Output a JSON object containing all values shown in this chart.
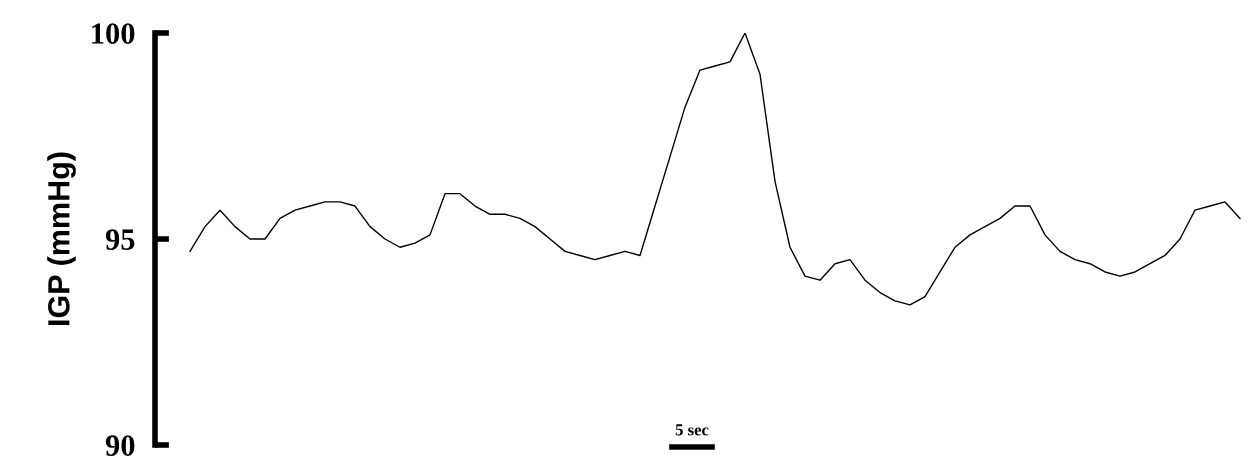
{
  "chart_data": {
    "type": "line",
    "ylabel": "IGP (mmHg)",
    "annotations": [
      "5 sec"
    ],
    "categories": [
      null,
      null,
      null,
      null,
      null,
      null,
      null,
      null,
      null,
      null,
      null,
      null,
      null,
      null,
      null,
      null,
      null,
      null,
      null,
      null,
      null,
      null,
      null,
      null,
      null,
      null,
      null,
      null,
      null,
      null,
      null,
      null,
      null,
      null,
      null,
      null,
      null,
      null,
      null,
      null,
      null,
      null,
      null,
      null,
      null,
      null,
      null,
      null,
      null,
      null,
      null,
      null,
      null,
      null,
      null,
      null,
      null,
      null,
      null,
      null,
      null,
      null,
      null,
      null,
      null,
      null,
      null,
      null,
      null,
      null,
      null
    ],
    "series": [
      {
        "color": "#000000",
        "values": [
          94.7,
          95.3,
          95.7,
          95.3,
          95.0,
          95.0,
          95.5,
          95.7,
          95.8,
          95.9,
          95.9,
          95.8,
          95.3,
          95.0,
          94.8,
          94.9,
          95.1,
          96.1,
          96.1,
          95.8,
          95.6,
          95.6,
          95.5,
          95.3,
          95.0,
          94.7,
          94.6,
          94.5,
          94.6,
          94.7,
          94.6,
          95.8,
          97.0,
          98.2,
          99.1,
          99.2,
          99.3,
          100.0,
          99.0,
          96.4,
          94.8,
          94.1,
          94.0,
          94.4,
          94.5,
          94.0,
          93.7,
          93.5,
          93.4,
          93.6,
          94.2,
          94.8,
          95.1,
          95.3,
          95.5,
          95.8,
          95.8,
          95.1,
          94.7,
          94.5,
          94.4,
          94.2,
          94.1,
          94.2,
          94.4,
          94.6,
          95.0,
          95.7,
          95.8,
          95.9,
          95.5
        ]
      }
    ],
    "ylim": [
      90,
      100
    ],
    "yticks": [
      90,
      95,
      100
    ],
    "tick_labels": "y",
    "grid": false,
    "legend": false
  }
}
